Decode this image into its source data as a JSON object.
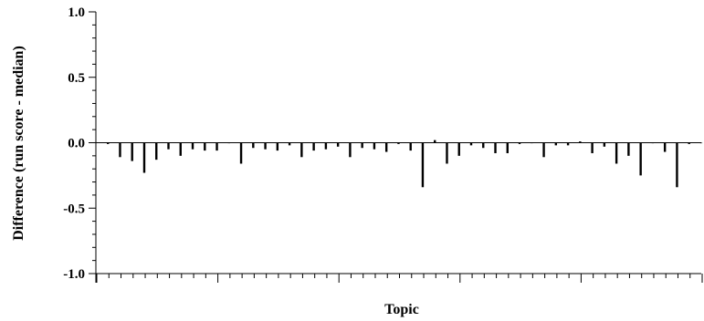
{
  "chart_data": {
    "type": "bar",
    "title": "",
    "xlabel": "Topic",
    "ylabel": "Difference (run score - median)",
    "ylim": [
      -1.0,
      1.0
    ],
    "yticks": [
      "1.0",
      "0.5",
      "0.0",
      "-0.5",
      "-1.0"
    ],
    "ytick_values": [
      1.0,
      0.5,
      0.0,
      -0.5,
      -1.0
    ],
    "grid": false,
    "x": [
      1,
      2,
      3,
      4,
      5,
      6,
      7,
      8,
      9,
      10,
      11,
      12,
      13,
      14,
      15,
      16,
      17,
      18,
      19,
      20,
      21,
      22,
      23,
      24,
      25,
      26,
      27,
      28,
      29,
      30,
      31,
      32,
      33,
      34,
      35,
      36,
      37,
      38,
      39,
      40,
      41,
      42,
      43,
      44,
      45,
      46,
      47,
      48,
      49,
      50
    ],
    "values": [
      -0.01,
      -0.11,
      -0.14,
      -0.23,
      -0.13,
      -0.05,
      -0.1,
      -0.05,
      -0.06,
      -0.06,
      0.0,
      -0.16,
      -0.04,
      -0.05,
      -0.06,
      -0.02,
      -0.11,
      -0.06,
      -0.05,
      -0.03,
      -0.11,
      -0.04,
      -0.05,
      -0.07,
      -0.01,
      -0.06,
      -0.34,
      0.02,
      -0.16,
      -0.1,
      -0.02,
      -0.04,
      -0.08,
      -0.08,
      -0.01,
      0.0,
      -0.11,
      -0.02,
      -0.02,
      0.01,
      -0.08,
      -0.03,
      -0.16,
      -0.1,
      -0.25,
      0.0,
      -0.07,
      -0.34,
      -0.01,
      0.0
    ]
  }
}
